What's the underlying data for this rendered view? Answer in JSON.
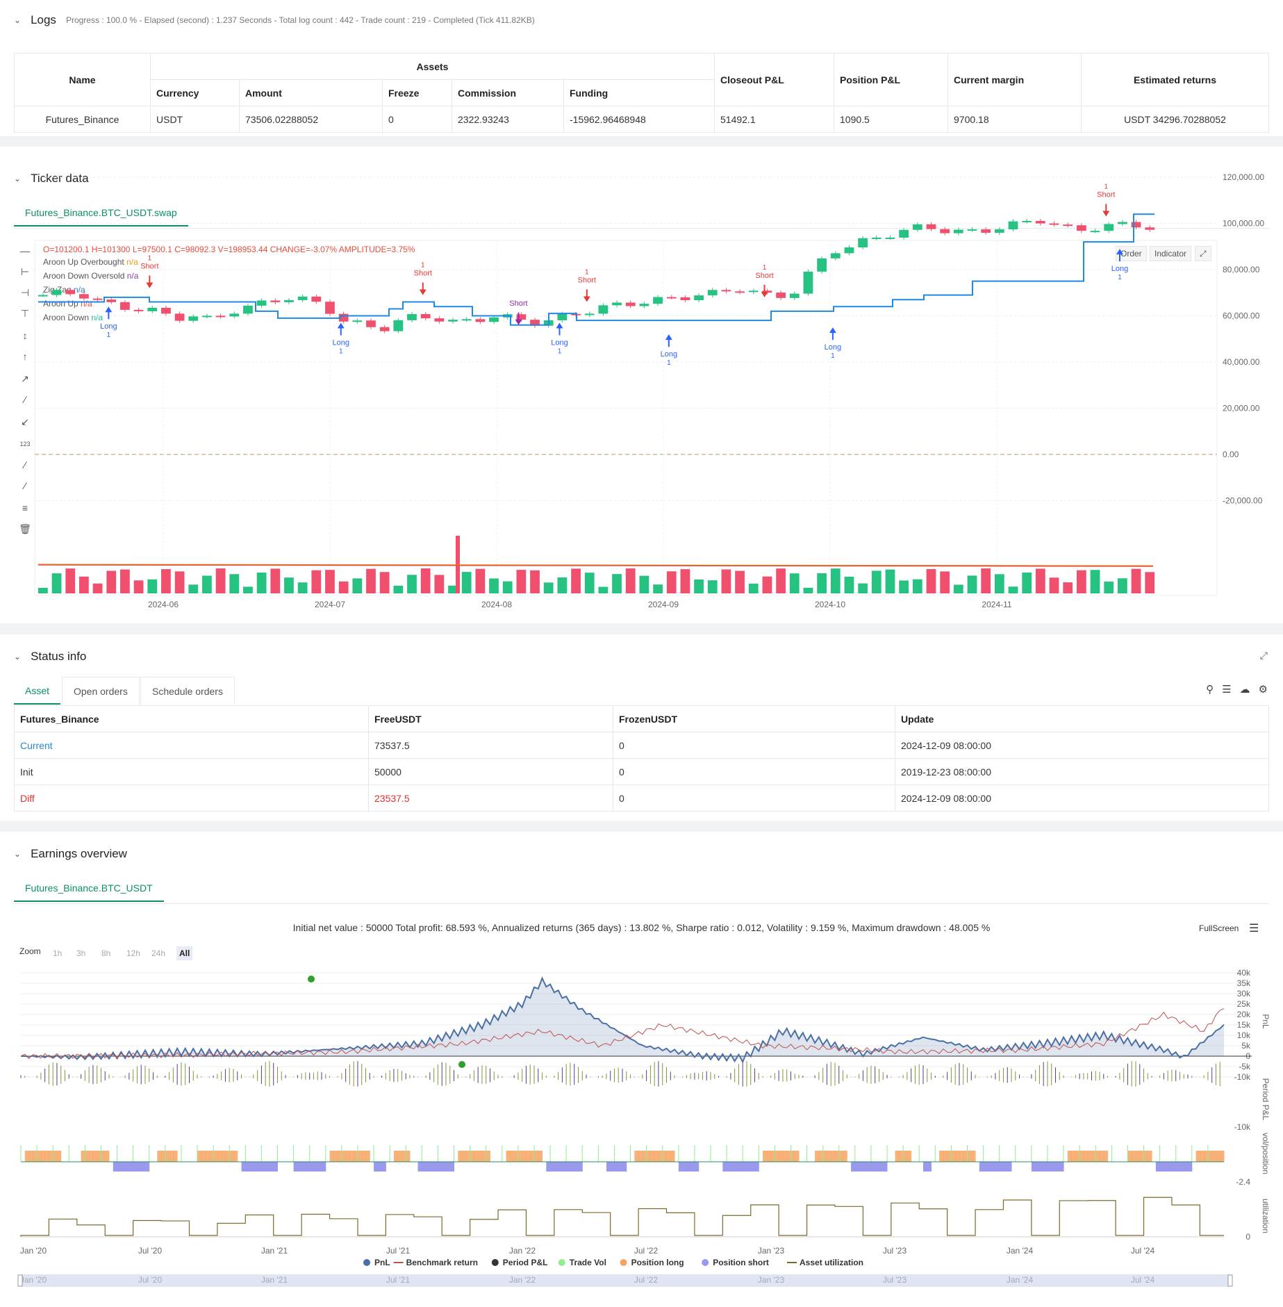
{
  "logs": {
    "title": "Logs",
    "summary": "Progress : 100.0 % - Elapsed (second) : 1.237  Seconds - Total log count : 442 - Trade count : 219 - Completed (Tick 411.82KB)"
  },
  "assets_table": {
    "group_header": "Assets",
    "headers": [
      "Name",
      "Currency",
      "Amount",
      "Freeze",
      "Commission",
      "Funding",
      "Closeout P&L",
      "Position P&L",
      "Current margin",
      "Estimated returns"
    ],
    "row": [
      "Futures_Binance",
      "USDT",
      "73506.02288052",
      "0",
      "2322.93243",
      "-15962.96468948",
      "51492.1",
      "1090.5",
      "9700.18",
      "USDT 34296.70288052"
    ]
  },
  "ticker": {
    "title": "Ticker data",
    "tab": "Futures_Binance.BTC_USDT.swap",
    "ohlc": {
      "o": "O=101200.1",
      "h": "H=101300",
      "l": "L=97500.1",
      "c": "C=98092.3",
      "v": "V=198953.44",
      "change": "CHANGE=-3.07%",
      "amp": "AMPLITUDE=3.75%"
    },
    "legend": [
      {
        "name": "Aroon Up Overbought",
        "value": "n/a",
        "color": "#f39c12"
      },
      {
        "name": "Aroon Down Oversold",
        "value": "n/a",
        "color": "#8e44ad"
      },
      {
        "name": "Zig Zag",
        "value": "n/a",
        "color": "#2980b9"
      },
      {
        "name": "Aroon Up",
        "value": "n/a",
        "color": "#e74c3c"
      },
      {
        "name": "Aroon Down",
        "value": "n/a",
        "color": "#1abc9c"
      }
    ],
    "buttons": {
      "order": "Order",
      "indicator": "Indicator"
    },
    "y_ticks": [
      "120,000.00",
      "100,000.00",
      "80,000.00",
      "60,000.00",
      "40,000.00",
      "20,000.00",
      "0.00",
      "-20,000.00"
    ],
    "x_ticks": [
      "2024-06",
      "2024-07",
      "2024-08",
      "2024-09",
      "2024-10",
      "2024-11"
    ],
    "signals": [
      {
        "label": "Long",
        "qty": "1",
        "type": "long",
        "date_idx": 5,
        "price": 64000
      },
      {
        "label": "Short",
        "qty": "1",
        "type": "short",
        "date_idx": 8,
        "price": 72000
      },
      {
        "label": "Long",
        "qty": "1",
        "type": "long",
        "date_idx": 22,
        "price": 57000
      },
      {
        "label": "Short",
        "qty": "1",
        "type": "short",
        "date_idx": 28,
        "price": 69000
      },
      {
        "label": "Short",
        "qty": "",
        "type": "short-exit",
        "date_idx": 35,
        "price": 56000
      },
      {
        "label": "Long",
        "qty": "1",
        "type": "long",
        "date_idx": 38,
        "price": 57000
      },
      {
        "label": "Short",
        "qty": "1",
        "type": "short",
        "date_idx": 40,
        "price": 66000
      },
      {
        "label": "Long",
        "qty": "1",
        "type": "long",
        "date_idx": 46,
        "price": 52000
      },
      {
        "label": "Short",
        "qty": "1",
        "type": "short",
        "date_idx": 53,
        "price": 68000
      },
      {
        "label": "Long",
        "qty": "1",
        "type": "long",
        "date_idx": 58,
        "price": 55000
      },
      {
        "label": "Short",
        "qty": "1",
        "type": "short",
        "date_idx": 78,
        "price": 103000
      },
      {
        "label": "Long",
        "qty": "1",
        "type": "long",
        "date_idx": 79,
        "price": 89000
      }
    ]
  },
  "status": {
    "title": "Status info",
    "tabs": [
      "Asset",
      "Open orders",
      "Schedule orders"
    ],
    "headers": [
      "Futures_Binance",
      "FreeUSDT",
      "FrozenUSDT",
      "Update"
    ],
    "rows": [
      [
        "Current",
        "73537.5",
        "0",
        "2024-12-09 08:00:00"
      ],
      [
        "Init",
        "50000",
        "0",
        "2019-12-23 08:00:00"
      ],
      [
        "Diff",
        "23537.5",
        "0",
        "2024-12-09 08:00:00"
      ]
    ]
  },
  "earnings": {
    "title": "Earnings overview",
    "tab": "Futures_Binance.BTC_USDT",
    "summary": "Initial net value : 50000 Total profit: 68.593 %, Annualized returns (365 days) : 13.802 %, Sharpe ratio : 0.012, Volatility : 9.159 %, Maximum drawdown : 48.005 %",
    "fullscreen": "FullScreen",
    "zoom_label": "Zoom",
    "zoom_options": [
      "1h",
      "3h",
      "8h",
      "12h",
      "24h",
      "All"
    ],
    "pnl_ticks": [
      "40k",
      "35k",
      "30k",
      "25k",
      "20k",
      "15k",
      "10k",
      "5k",
      "0",
      "-5k",
      "-10k"
    ],
    "period_ticks": [
      "-10k"
    ],
    "pos_ticks": [
      "-2.4"
    ],
    "util_ticks": [
      "0"
    ],
    "axis_titles": [
      "PnL",
      "Period P&L",
      "vol/position",
      "utilization"
    ],
    "x_ticks": [
      "Jan '20",
      "Jul '20",
      "Jan '21",
      "Jul '21",
      "Jan '22",
      "Jul '22",
      "Jan '23",
      "Jul '23",
      "Jan '24",
      "Jul '24"
    ],
    "legend": [
      {
        "name": "PnL",
        "color": "#4a6fa5",
        "shape": "dot"
      },
      {
        "name": "Benchmark return",
        "color": "#c0504d",
        "shape": "line"
      },
      {
        "name": "Period P&L",
        "color": "#333333",
        "shape": "dot"
      },
      {
        "name": "Trade Vol",
        "color": "#90ee90",
        "shape": "dot"
      },
      {
        "name": "Position long",
        "color": "#f4a460",
        "shape": "dot"
      },
      {
        "name": "Position short",
        "color": "#9999ee",
        "shape": "dot"
      },
      {
        "name": "Asset utilization",
        "color": "#7a6a2a",
        "shape": "line"
      }
    ]
  }
}
